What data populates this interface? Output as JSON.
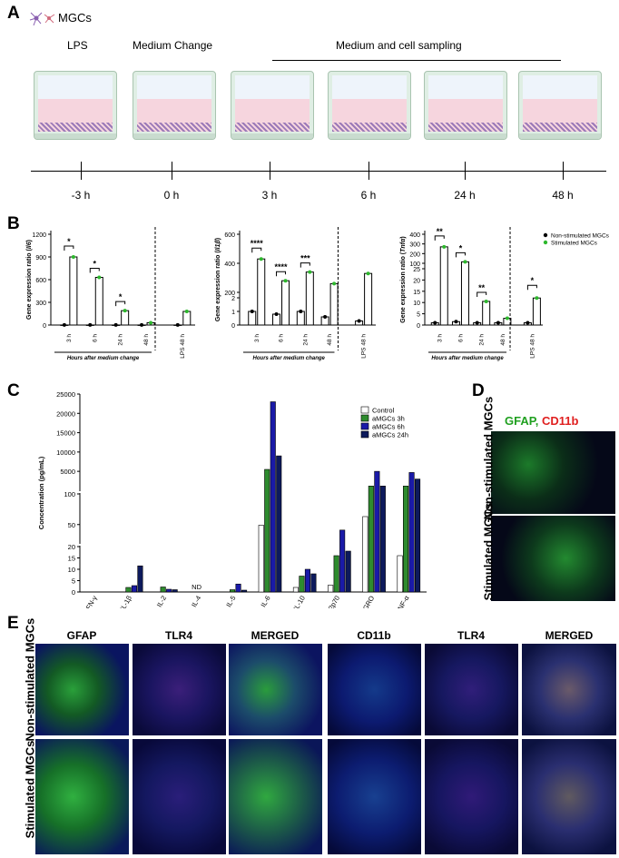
{
  "panel_letters": {
    "a": "A",
    "b": "B",
    "c": "C",
    "d": "D",
    "e": "E"
  },
  "panel_a": {
    "legend_text": "MGCs",
    "event_labels": {
      "lps": "LPS",
      "medium_change": "Medium Change",
      "sampling": "Medium and cell sampling"
    },
    "time_labels": [
      "-3 h",
      "0 h",
      "3 h",
      "6 h",
      "24 h",
      "48 h"
    ]
  },
  "panel_b": {
    "legend": {
      "nonstim": "Non-stimulated MGCs",
      "stim": "Stimulated MGCs"
    },
    "x_group_label": "Hours after medium change",
    "colors": {
      "nonstim": "#000000",
      "stim": "#2db82d"
    },
    "charts": [
      {
        "id": "il6",
        "ylabel_prefix": "Gene expression ratio (",
        "ylabel_gene": "Il6",
        "ylabel_suffix": ")",
        "yticks": [
          "0",
          "300",
          "600",
          "900",
          "1200"
        ],
        "categories": [
          "3 h",
          "6 h",
          "24 h",
          "48 h",
          "LPS 48 h"
        ],
        "nonstim": [
          1,
          1,
          1,
          1,
          1
        ],
        "stim": [
          900,
          630,
          190,
          30,
          180
        ],
        "sig": [
          "*",
          "*",
          "*"
        ]
      },
      {
        "id": "il1b",
        "ylabel_prefix": "Gene expression ratio (",
        "ylabel_gene": "Il1β",
        "ylabel_suffix": ")",
        "yticks": [
          "0",
          "1",
          "2",
          "200",
          "400",
          "600"
        ],
        "categories": [
          "3 h",
          "6 h",
          "24 h",
          "48 h",
          "LPS 48 h"
        ],
        "nonstim": [
          1,
          0.8,
          1,
          0.6,
          0.3
        ],
        "stim": [
          430,
          280,
          340,
          260,
          330
        ],
        "sig": [
          "****",
          "****",
          "***"
        ]
      },
      {
        "id": "tnfa",
        "ylabel_prefix": "Gene expression ratio (",
        "ylabel_gene": "Tnfα",
        "ylabel_suffix": ")",
        "yticks": [
          "0",
          "5",
          "10",
          "15",
          "20",
          "25",
          "100",
          "200",
          "300",
          "400"
        ],
        "categories": [
          "3 h",
          "6 h",
          "24 h",
          "48 h",
          "LPS 48 h"
        ],
        "nonstim": [
          1,
          1.5,
          1,
          1,
          1
        ],
        "stim": [
          270,
          115,
          10.5,
          3,
          12
        ],
        "sig": [
          "**",
          "*",
          "**",
          "*"
        ]
      }
    ]
  },
  "chart_data": {
    "type": "bar",
    "title": "",
    "xlabel": "",
    "ylabel": "Concentration (pg/mL)",
    "categories": [
      "IFN-γ",
      "IL-1β",
      "IL-2",
      "IL-4",
      "IL-5",
      "IL-6",
      "IL-10",
      "IL-12p70",
      "KC/GRO",
      "TNF-α"
    ],
    "yticks": [
      "0",
      "5",
      "10",
      "15",
      "20",
      "50",
      "100",
      "5000",
      "10000",
      "15000",
      "20000",
      "25000"
    ],
    "annotation": "ND",
    "series": [
      {
        "name": "Control",
        "color": "#ffffff",
        "values": [
          0,
          0,
          0,
          0,
          0,
          49,
          2,
          3,
          63,
          16
        ]
      },
      {
        "name": "aMGCs 3h",
        "color": "#2e8b2e",
        "values": [
          0,
          2,
          2.2,
          0,
          1,
          5500,
          7,
          16,
          1200,
          1200
        ]
      },
      {
        "name": "aMGCs 6h",
        "color": "#1a1aa8",
        "values": [
          0,
          2.8,
          1.2,
          0,
          3.5,
          23000,
          10,
          41,
          5000,
          4700
        ]
      },
      {
        "name": "aMGCs 24h",
        "color": "#0d1a5c",
        "values": [
          0,
          11.5,
          1,
          0,
          0.8,
          9000,
          8,
          18,
          1200,
          3000
        ]
      }
    ]
  },
  "panel_d": {
    "stain_labels": {
      "gfap": "GFAP, ",
      "cd11b": "CD11b"
    },
    "row_labels": {
      "nonstim": "Non-stimulated MGCs",
      "stim": "Stimulated MGCs"
    }
  },
  "panel_e": {
    "column_labels": [
      "GFAP",
      "TLR4",
      "MERGED",
      "CD11b",
      "TLR4",
      "MERGED"
    ],
    "row_labels": {
      "nonstim": "Non-stimulated MGCs",
      "stim": "Stimulated MGCs"
    }
  }
}
